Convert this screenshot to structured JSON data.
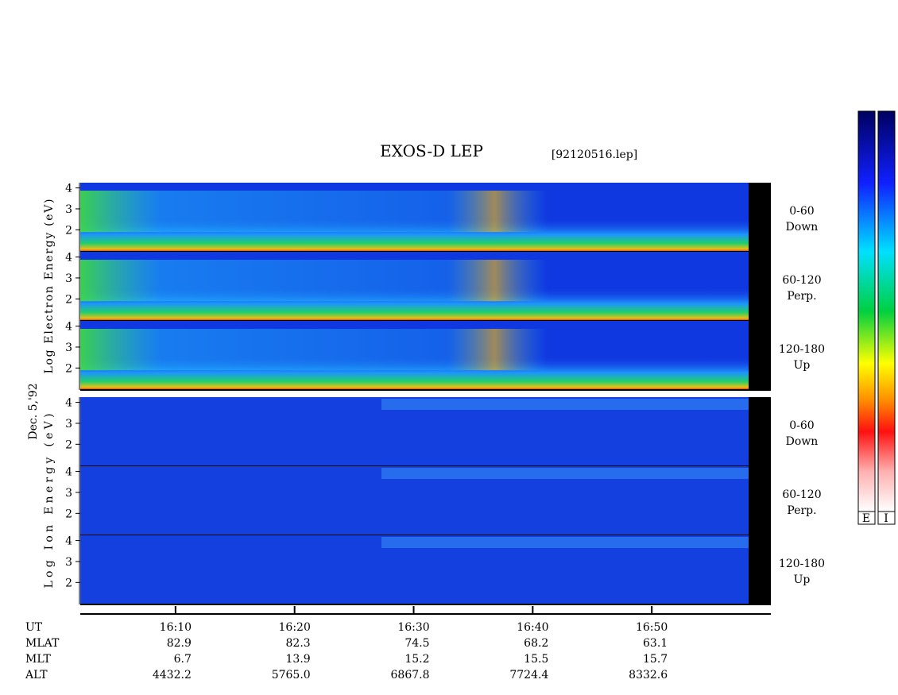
{
  "chart_data": {
    "type": "spectrogram",
    "title": "EXOS-D LEP",
    "subtitle": "[92120516.lep]",
    "date_label": "Dec. 5,'92",
    "xlim": [
      962,
      1020
    ],
    "xticks": [
      {
        "value": 970,
        "label": "16:10"
      },
      {
        "value": 980,
        "label": "16:20"
      },
      {
        "value": 990,
        "label": "16:30"
      },
      {
        "value": 1000,
        "label": "16:40"
      },
      {
        "value": 1010,
        "label": "16:50"
      }
    ],
    "ylim": [
      0.95,
      4.25
    ],
    "yticks": [
      2,
      3,
      4
    ],
    "groups": [
      {
        "ylabel": "Log Electron Energy (eV)",
        "panels": [
          {
            "label": [
              "0-60",
              "Down"
            ]
          },
          {
            "label": [
              "60-120",
              "Perp."
            ]
          },
          {
            "label": [
              "120-180",
              "Up"
            ]
          }
        ]
      },
      {
        "ylabel": "Log Ion Energy (eV)",
        "panels": [
          {
            "label": [
              "0-60",
              "Down"
            ]
          },
          {
            "label": [
              "60-120",
              "Perp."
            ]
          },
          {
            "label": [
              "120-180",
              "Up"
            ]
          }
        ]
      }
    ],
    "ephemeris": {
      "time_label": "UT",
      "rows": [
        {
          "name": "MLAT",
          "values": [
            "82.9",
            "82.3",
            "74.5",
            "68.2",
            "63.1"
          ]
        },
        {
          "name": "MLT",
          "values": [
            "6.7",
            "13.9",
            "15.2",
            "15.5",
            "15.7"
          ]
        },
        {
          "name": "ALT",
          "values": [
            "4432.2",
            "5765.0",
            "6867.8",
            "7724.4",
            "8332.6"
          ]
        }
      ]
    },
    "colorbar_labels": [
      "E",
      "I"
    ]
  }
}
